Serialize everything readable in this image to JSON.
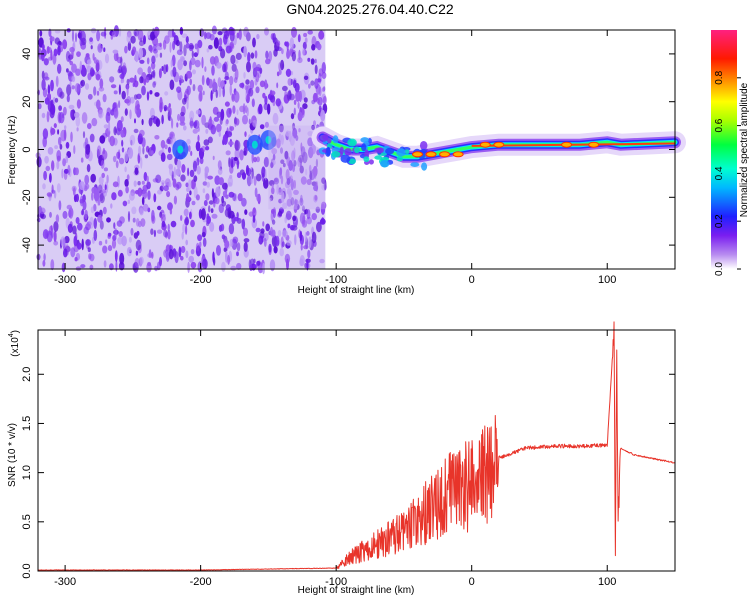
{
  "title": "GN04.2025.276.04.40.C22",
  "chart_data": [
    {
      "type": "heatmap",
      "name": "spectrogram",
      "xlabel": "Height of straight line (km)",
      "ylabel": "Frequency (Hz)",
      "xlim": [
        -320,
        150
      ],
      "ylim": [
        -50,
        50
      ],
      "xticks": [
        -300,
        -200,
        -100,
        0,
        100
      ],
      "yticks": [
        -40,
        -20,
        0,
        20,
        40
      ],
      "noise_region_x": [
        -320,
        -108
      ],
      "ridge": [
        {
          "x": -110,
          "y": 5
        },
        {
          "x": -100,
          "y": 2
        },
        {
          "x": -90,
          "y": 0
        },
        {
          "x": -80,
          "y": 0
        },
        {
          "x": -70,
          "y": 1
        },
        {
          "x": -60,
          "y": -1
        },
        {
          "x": -50,
          "y": -3
        },
        {
          "x": -40,
          "y": -3
        },
        {
          "x": -30,
          "y": -2
        },
        {
          "x": -20,
          "y": -1
        },
        {
          "x": -10,
          "y": 0
        },
        {
          "x": 0,
          "y": 1
        },
        {
          "x": 20,
          "y": 2
        },
        {
          "x": 50,
          "y": 2
        },
        {
          "x": 80,
          "y": 2
        },
        {
          "x": 100,
          "y": 3
        },
        {
          "x": 110,
          "y": 2
        },
        {
          "x": 150,
          "y": 3
        }
      ],
      "colorbar": {
        "label": "Normalized spectral amplitude",
        "range": [
          0,
          1
        ],
        "ticks": [
          "0.0",
          "0.2",
          "0.4",
          "0.6",
          "0.8"
        ]
      }
    },
    {
      "type": "line",
      "name": "snr",
      "xlabel": "Height of straight line (km)",
      "ylabel": "SNR (10 * v/v)",
      "yscale_label": "(x10",
      "yscale_exp": "4",
      "xlim": [
        -320,
        150
      ],
      "ylim": [
        0,
        2.45
      ],
      "xticks": [
        -300,
        -200,
        -100,
        0,
        100
      ],
      "yticks": [
        "0.0",
        "0.5",
        "1.0",
        "1.5",
        "2.0"
      ],
      "color": "#e8342a",
      "series": [
        {
          "name": "SNR",
          "x": [
            -320,
            -200,
            -100,
            -90,
            -70,
            -50,
            -30,
            -10,
            0,
            20,
            40,
            60,
            80,
            100,
            105,
            106,
            107,
            108,
            110,
            120,
            150
          ],
          "y": [
            0.01,
            0.01,
            0.03,
            0.15,
            0.3,
            0.45,
            0.7,
            0.95,
            1.0,
            1.15,
            1.25,
            1.27,
            1.27,
            1.28,
            2.45,
            0.12,
            2.2,
            0.5,
            1.25,
            1.18,
            1.1
          ]
        }
      ]
    }
  ]
}
